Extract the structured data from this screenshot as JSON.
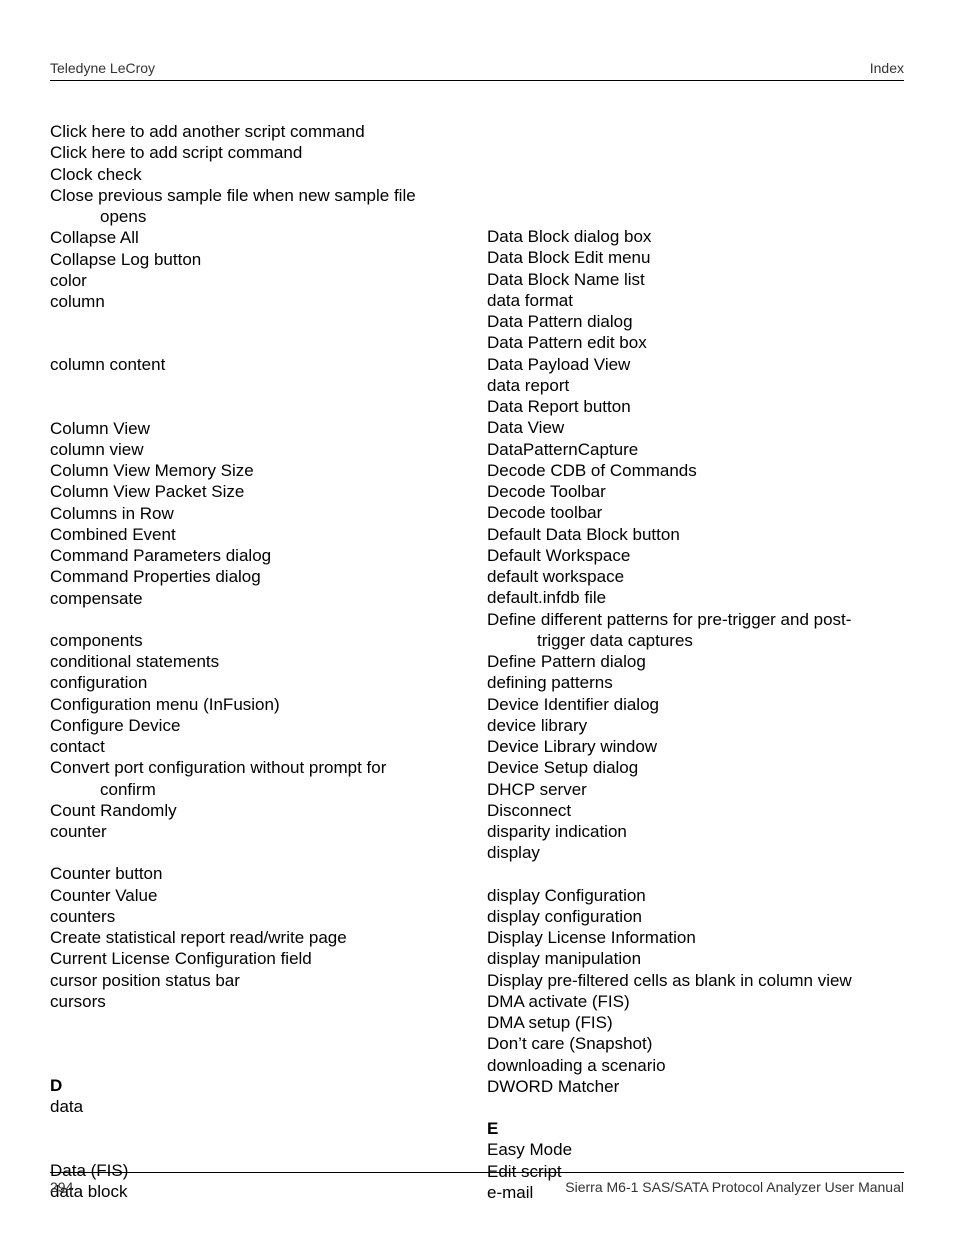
{
  "header": {
    "left": "Teledyne LeCroy",
    "right": "Index"
  },
  "left_col": [
    {
      "t": "entry",
      "v": "Click here to add another script command"
    },
    {
      "t": "entry",
      "v": "Click here to add script command"
    },
    {
      "t": "entry",
      "v": "Clock check"
    },
    {
      "t": "entry",
      "v": "Close previous sample file when new sample file"
    },
    {
      "t": "indent",
      "v": "opens"
    },
    {
      "t": "entry",
      "v": "Collapse All"
    },
    {
      "t": "entry",
      "v": "Collapse Log button"
    },
    {
      "t": "entry",
      "v": "color"
    },
    {
      "t": "entry",
      "v": "column"
    },
    {
      "t": "gap"
    },
    {
      "t": "gap"
    },
    {
      "t": "entry",
      "v": "column content"
    },
    {
      "t": "gap"
    },
    {
      "t": "gap"
    },
    {
      "t": "entry",
      "v": "Column View"
    },
    {
      "t": "entry",
      "v": "column view"
    },
    {
      "t": "entry",
      "v": "Column View Memory Size"
    },
    {
      "t": "entry",
      "v": "Column View Packet Size"
    },
    {
      "t": "entry",
      "v": "Columns in Row"
    },
    {
      "t": "entry",
      "v": "Combined Event"
    },
    {
      "t": "entry",
      "v": "Command Parameters dialog"
    },
    {
      "t": "entry",
      "v": "Command Properties dialog"
    },
    {
      "t": "entry",
      "v": "compensate"
    },
    {
      "t": "gap"
    },
    {
      "t": "entry",
      "v": "components"
    },
    {
      "t": "entry",
      "v": "conditional statements"
    },
    {
      "t": "entry",
      "v": "configuration"
    },
    {
      "t": "entry",
      "v": "Configuration menu (InFusion)"
    },
    {
      "t": "entry",
      "v": "Configure Device"
    },
    {
      "t": "entry",
      "v": "contact"
    },
    {
      "t": "entry",
      "v": "Convert port configuration without prompt for"
    },
    {
      "t": "indent",
      "v": "confirm"
    },
    {
      "t": "entry",
      "v": "Count Randomly"
    },
    {
      "t": "entry",
      "v": "counter"
    },
    {
      "t": "gap"
    },
    {
      "t": "entry",
      "v": "Counter button"
    },
    {
      "t": "entry",
      "v": "Counter Value"
    },
    {
      "t": "entry",
      "v": "counters"
    },
    {
      "t": "entry",
      "v": "Create statistical report read/write page"
    },
    {
      "t": "entry",
      "v": "Current License Configuration field"
    },
    {
      "t": "entry",
      "v": "cursor position status bar"
    },
    {
      "t": "entry",
      "v": "cursors"
    },
    {
      "t": "gap"
    },
    {
      "t": "gap"
    },
    {
      "t": "gap"
    },
    {
      "t": "letter",
      "v": "D"
    },
    {
      "t": "entry",
      "v": "data"
    },
    {
      "t": "gap"
    },
    {
      "t": "gap"
    },
    {
      "t": "entry",
      "v": "Data (FIS)"
    },
    {
      "t": "entry",
      "v": "data block"
    }
  ],
  "right_col": [
    {
      "t": "gap"
    },
    {
      "t": "gap"
    },
    {
      "t": "gap"
    },
    {
      "t": "gap"
    },
    {
      "t": "gap"
    },
    {
      "t": "entry",
      "v": "Data Block dialog box"
    },
    {
      "t": "entry",
      "v": "Data Block Edit menu"
    },
    {
      "t": "entry",
      "v": "Data Block Name list"
    },
    {
      "t": "entry",
      "v": "data format"
    },
    {
      "t": "entry",
      "v": "Data Pattern dialog"
    },
    {
      "t": "entry",
      "v": "Data Pattern edit box"
    },
    {
      "t": "entry",
      "v": "Data Payload View"
    },
    {
      "t": "entry",
      "v": "data report"
    },
    {
      "t": "entry",
      "v": "Data Report button"
    },
    {
      "t": "entry",
      "v": "Data View"
    },
    {
      "t": "entry",
      "v": "DataPatternCapture"
    },
    {
      "t": "entry",
      "v": "Decode CDB of Commands"
    },
    {
      "t": "entry",
      "v": "Decode Toolbar"
    },
    {
      "t": "entry",
      "v": "Decode toolbar"
    },
    {
      "t": "entry",
      "v": "Default Data Block button"
    },
    {
      "t": "entry",
      "v": "Default Workspace"
    },
    {
      "t": "entry",
      "v": "default workspace"
    },
    {
      "t": "entry",
      "v": "default.infdb file"
    },
    {
      "t": "entry",
      "v": "Define different patterns for pre-trigger and post-"
    },
    {
      "t": "indent",
      "v": "trigger data captures"
    },
    {
      "t": "entry",
      "v": "Define Pattern dialog"
    },
    {
      "t": "entry",
      "v": "defining patterns"
    },
    {
      "t": "entry",
      "v": "Device Identifier dialog"
    },
    {
      "t": "entry",
      "v": "device library"
    },
    {
      "t": "entry",
      "v": "Device Library window"
    },
    {
      "t": "entry",
      "v": "Device Setup dialog"
    },
    {
      "t": "entry",
      "v": "DHCP server"
    },
    {
      "t": "entry",
      "v": "Disconnect"
    },
    {
      "t": "entry",
      "v": "disparity indication"
    },
    {
      "t": "entry",
      "v": "display"
    },
    {
      "t": "gap"
    },
    {
      "t": "entry",
      "v": "display Configuration"
    },
    {
      "t": "entry",
      "v": "display configuration"
    },
    {
      "t": "entry",
      "v": "Display License Information"
    },
    {
      "t": "entry",
      "v": "display manipulation"
    },
    {
      "t": "entry",
      "v": "Display pre-filtered cells as blank in column view"
    },
    {
      "t": "entry",
      "v": "DMA activate (FIS)"
    },
    {
      "t": "entry",
      "v": "DMA setup (FIS)"
    },
    {
      "t": "entry",
      "v": "Don’t care (Snapshot)"
    },
    {
      "t": "entry",
      "v": "downloading a scenario"
    },
    {
      "t": "entry",
      "v": "DWORD Matcher"
    },
    {
      "t": "gap"
    },
    {
      "t": "letter",
      "v": "E"
    },
    {
      "t": "entry",
      "v": "Easy Mode"
    },
    {
      "t": "entry",
      "v": "Edit script"
    },
    {
      "t": "entry",
      "v": "e-mail"
    }
  ],
  "footer": {
    "page": "294",
    "title": "Sierra M6-1 SAS/SATA Protocol Analyzer User Manual"
  }
}
